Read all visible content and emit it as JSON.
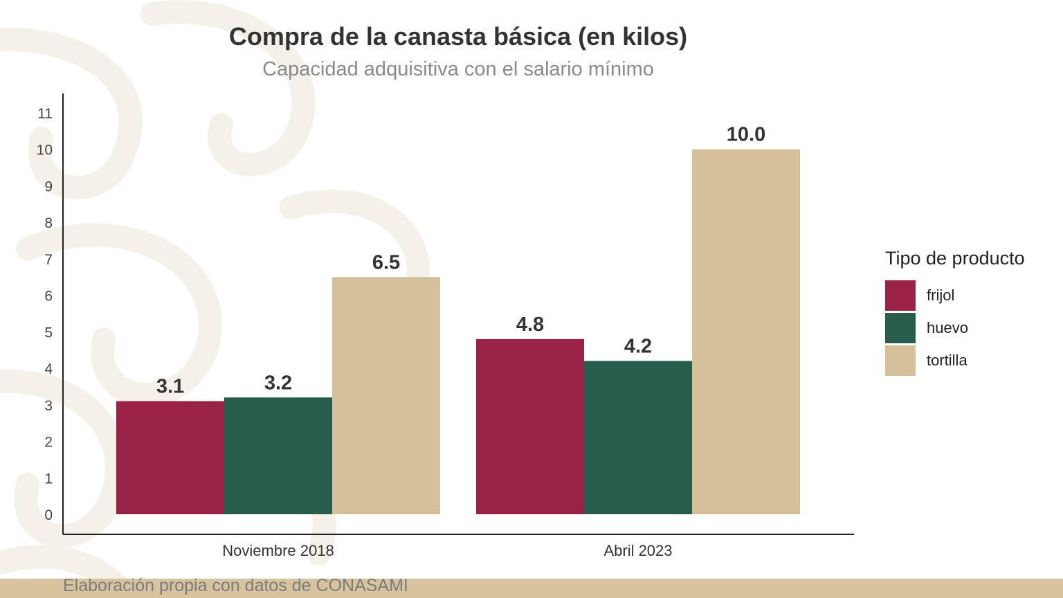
{
  "title": "Compra de la canasta básica (en kilos)",
  "subtitle": "Capacidad adquisitiva con el salario mínimo",
  "legend": {
    "title": "Tipo de producto",
    "items": [
      {
        "label": "frijol",
        "color": "#9b2247"
      },
      {
        "label": "huevo",
        "color": "#285c4d"
      },
      {
        "label": "tortilla",
        "color": "#d4c19c"
      }
    ]
  },
  "source": "Elaboración propia con datos de CONASAMI",
  "colors": {
    "frijol": "#9b2247",
    "huevo": "#285c4d",
    "tortilla": "#d4c19c",
    "footer_band": "#d7c39e",
    "ornament": "#efe6d6"
  },
  "chart_data": {
    "type": "bar",
    "categories": [
      "Noviembre 2018",
      "Abril 2023"
    ],
    "series": [
      {
        "name": "frijol",
        "values": [
          3.1,
          4.8
        ]
      },
      {
        "name": "huevo",
        "values": [
          3.2,
          4.2
        ]
      },
      {
        "name": "tortilla",
        "values": [
          6.5,
          10.0
        ]
      }
    ],
    "data_labels": [
      [
        "3.1",
        "4.8"
      ],
      [
        "3.2",
        "4.2"
      ],
      [
        "6.5",
        "10.0"
      ]
    ],
    "title": "Compra de la canasta básica (en kilos)",
    "subtitle": "Capacidad adquisitiva con el salario mínimo",
    "xlabel": "",
    "ylabel": "",
    "ylim": [
      0,
      11
    ],
    "yticks": [
      "0",
      "1",
      "2",
      "3",
      "4",
      "5",
      "6",
      "7",
      "8",
      "9",
      "10",
      "11"
    ],
    "grid": false,
    "legend_position": "right"
  }
}
